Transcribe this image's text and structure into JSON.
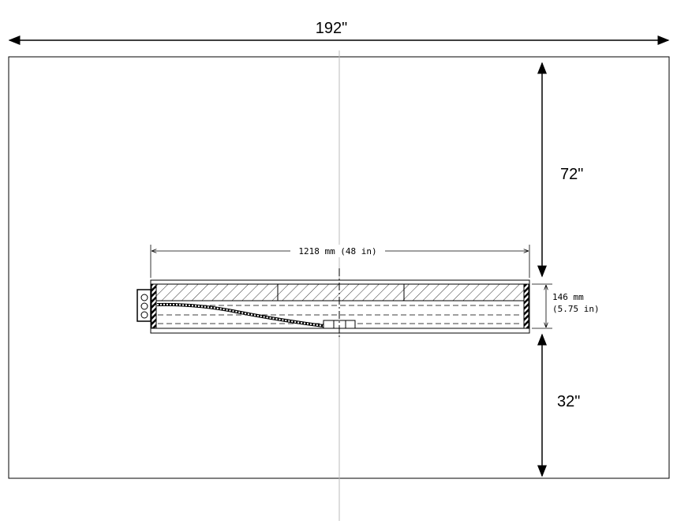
{
  "dimensions": {
    "overall_width": "192\"",
    "top_height": "72\"",
    "bottom_height": "32\"",
    "panel_length": "1218 mm (48 in)",
    "panel_thickness_mm": "146 mm",
    "panel_thickness_in": "(5.75 in)"
  }
}
